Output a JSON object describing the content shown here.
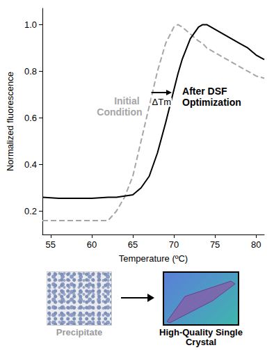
{
  "chart_data": {
    "type": "line",
    "x_label": "Temperature (ºC)",
    "y_label": "Normalized fluorescence",
    "x": [
      54,
      56,
      58,
      60,
      62,
      63,
      64,
      65,
      66,
      67,
      68,
      69,
      70,
      70.5,
      71,
      72,
      73,
      73.5,
      74,
      75,
      76,
      77,
      78,
      79,
      80,
      81
    ],
    "series": [
      {
        "name": "Initial Condition",
        "color": "#a6a6a6",
        "line_style": "dashed",
        "values": [
          0.16,
          0.16,
          0.16,
          0.16,
          0.16,
          0.2,
          0.26,
          0.35,
          0.5,
          0.65,
          0.8,
          0.92,
          0.99,
          1.0,
          0.99,
          0.96,
          0.93,
          0.92,
          0.9,
          0.88,
          0.86,
          0.84,
          0.82,
          0.8,
          0.78,
          0.77
        ]
      },
      {
        "name": "After DSF Optimization",
        "color": "#000000",
        "line_style": "solid",
        "values": [
          0.26,
          0.255,
          0.255,
          0.255,
          0.26,
          0.26,
          0.265,
          0.27,
          0.3,
          0.35,
          0.45,
          0.58,
          0.72,
          0.79,
          0.85,
          0.94,
          0.99,
          1.0,
          1.0,
          0.98,
          0.96,
          0.94,
          0.92,
          0.9,
          0.87,
          0.85
        ]
      }
    ],
    "annotations": [
      "ΔTm"
    ],
    "xlim": [
      54,
      81
    ],
    "xticks": [
      55,
      60,
      65,
      70,
      75,
      80
    ],
    "ylim": [
      0.1,
      1.07
    ],
    "yticks": [
      0.2,
      0.4,
      0.6,
      0.8,
      {
        "value": 1,
        "label": "1.0"
      }
    ],
    "grid": false
  },
  "images": [
    {
      "label": "Precipitate"
    },
    {
      "label": "High-Quality Single Crystal"
    }
  ]
}
